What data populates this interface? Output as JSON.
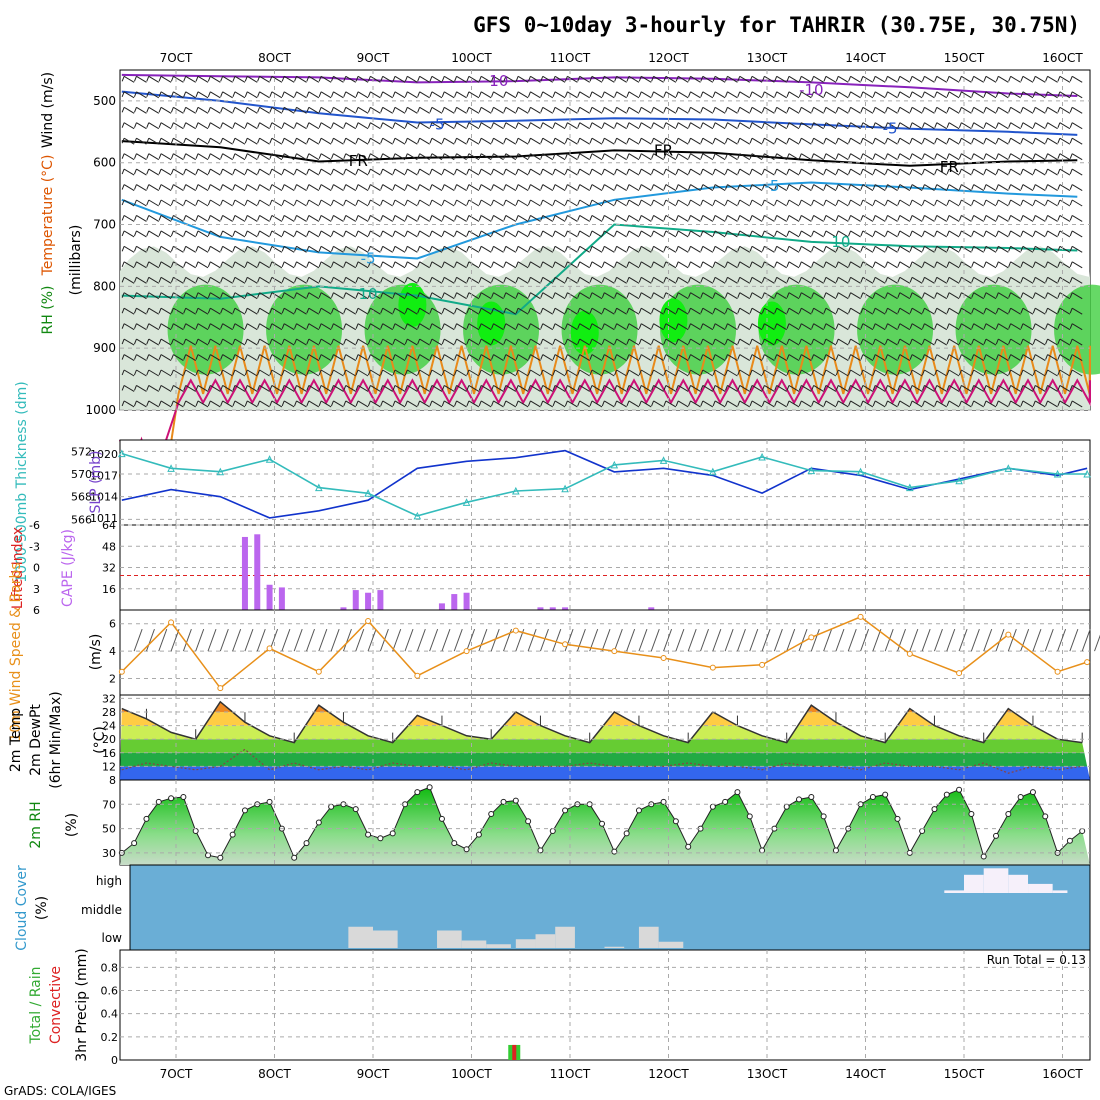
{
  "title": "GFS 0~10day 3-hourly for TAHRIR (30.75E, 30.75N)",
  "credit": "GrADS: COLA/IGES",
  "run_total_label": "Run Total = 0.13",
  "colors": {
    "rh_green": "#33cc33",
    "rh_light": "#d9e6d9",
    "slp": "#1133cc",
    "thickness": "#33bbbb",
    "cape": "#bb66ee",
    "lifted_index": "#dd2222",
    "wind_speed": "#e8901a",
    "cloud_bg": "#6aaed6",
    "cloud_fill": "#d9d9d9",
    "precip_total": "#33cc33",
    "precip_conv": "#dd2222"
  },
  "chart_data": [
    {
      "id": "upper_air",
      "type": "heatmap",
      "ylabel_parts": [
        "RH (%)",
        "Temperature (°C)",
        "Wind (m/s)"
      ],
      "ylabel_right": "(millibars)",
      "x_ticks": [
        "7OCT",
        "8OCT",
        "9OCT",
        "10OCT",
        "11OCT",
        "12OCT",
        "13OCT",
        "14OCT",
        "15OCT",
        "16OCT"
      ],
      "y_ticks": [
        500,
        600,
        700,
        800,
        900,
        1000
      ],
      "ylim": [
        450,
        1000
      ],
      "contour_labels": [
        {
          "text": "-10",
          "x": 3.8,
          "p": 468,
          "color": "#8822bb"
        },
        {
          "text": "-10",
          "x": 7.0,
          "p": 482,
          "color": "#8822bb"
        },
        {
          "text": "-5",
          "x": 3.2,
          "p": 538,
          "color": "#2255cc"
        },
        {
          "text": "-5",
          "x": 7.8,
          "p": 545,
          "color": "#2255cc"
        },
        {
          "text": "FR",
          "x": 2.4,
          "p": 597,
          "color": "#000000"
        },
        {
          "text": "FR",
          "x": 5.5,
          "p": 580,
          "color": "#000000"
        },
        {
          "text": "FR",
          "x": 8.4,
          "p": 607,
          "color": "#000000"
        },
        {
          "text": "-5",
          "x": 6.6,
          "p": 638,
          "color": "#2299dd"
        },
        {
          "text": "10",
          "x": 7.3,
          "p": 728,
          "color": "#11aa88"
        },
        {
          "text": "-5",
          "x": 2.5,
          "p": 755,
          "color": "#2299dd"
        },
        {
          "text": "10",
          "x": 2.5,
          "p": 812,
          "color": "#11aa88"
        }
      ],
      "isotherms": [
        {
          "name": "-10",
          "color": "#8822bb",
          "x": [
            0,
            1,
            2,
            3,
            4,
            5,
            6,
            7,
            8,
            9,
            9.7
          ],
          "p": [
            458,
            460,
            462,
            470,
            468,
            462,
            464,
            470,
            478,
            488,
            492
          ]
        },
        {
          "name": "-5",
          "color": "#2255cc",
          "x": [
            0,
            1,
            2,
            3,
            4,
            5,
            6,
            7,
            8,
            9,
            9.7
          ],
          "p": [
            485,
            500,
            520,
            535,
            532,
            528,
            530,
            538,
            545,
            550,
            555
          ]
        },
        {
          "name": "FR",
          "color": "#000000",
          "x": [
            0,
            1,
            2,
            3,
            4,
            5,
            6,
            7,
            8,
            9,
            9.7
          ],
          "p": [
            565,
            575,
            598,
            592,
            590,
            580,
            584,
            596,
            605,
            598,
            596
          ]
        },
        {
          "name": "-5b",
          "color": "#2299dd",
          "x": [
            0,
            1,
            2,
            3,
            4,
            5,
            6,
            7,
            8,
            9,
            9.7
          ],
          "p": [
            660,
            720,
            745,
            755,
            700,
            660,
            640,
            632,
            640,
            650,
            655
          ]
        },
        {
          "name": "10",
          "color": "#11aa88",
          "x": [
            0,
            1,
            2,
            3,
            4,
            5,
            6,
            7,
            8,
            9,
            9.7
          ],
          "p": [
            815,
            820,
            800,
            815,
            845,
            700,
            712,
            728,
            735,
            738,
            742
          ]
        }
      ]
    },
    {
      "id": "slp_thickness",
      "type": "line",
      "ylabel_left": "1000-500mb Thickness (dm)",
      "ylabel_right": "SLP (mb)",
      "y_ticks_left": [
        566,
        568,
        570,
        572
      ],
      "y_ticks_right": [
        1011,
        1014,
        1017,
        1020
      ],
      "ylim_left": [
        565.5,
        573
      ],
      "ylim_right": [
        1010,
        1022
      ],
      "series": [
        {
          "name": "SLP",
          "color": "#1133cc",
          "axis": "right",
          "x": [
            0,
            0.5,
            1,
            1.5,
            2,
            2.5,
            3,
            3.5,
            4,
            4.5,
            5,
            5.5,
            6,
            6.5,
            7,
            7.5,
            8,
            8.5,
            9,
            9.5,
            9.8
          ],
          "values": [
            1013.5,
            1015,
            1014,
            1011,
            1012,
            1013.5,
            1018,
            1019,
            1019.5,
            1020.5,
            1017.5,
            1018,
            1017,
            1014.5,
            1018,
            1017,
            1015,
            1016.5,
            1018,
            1017,
            1018
          ]
        },
        {
          "name": "Thickness",
          "color": "#33bbbb",
          "axis": "left",
          "x": [
            0,
            0.5,
            1,
            1.5,
            2,
            2.5,
            3,
            3.5,
            4,
            4.5,
            5,
            5.5,
            6,
            6.5,
            7,
            7.5,
            8,
            8.5,
            9,
            9.5,
            9.8
          ],
          "values": [
            571.8,
            570.5,
            570.2,
            571.3,
            568.8,
            568.3,
            566.3,
            567.5,
            568.5,
            568.7,
            570.8,
            571.2,
            570.2,
            571.5,
            570.3,
            570.2,
            568.8,
            569.4,
            570.5,
            570,
            570
          ]
        }
      ]
    },
    {
      "id": "cape_li",
      "type": "bar",
      "ylabel_left": "Lifted Index",
      "ylabel_right": "CAPE (J/kg)",
      "y_ticks_left": [
        -6,
        -3,
        0,
        3,
        6
      ],
      "y_ticks_right": [
        16,
        32,
        48,
        64
      ],
      "ylim_right": [
        0,
        64
      ],
      "x": [
        1.25,
        1.375,
        1.5,
        1.625,
        2.25,
        2.375,
        2.5,
        2.625,
        3.25,
        3.375,
        3.5,
        4.25,
        4.375,
        4.5,
        5.375
      ],
      "values": [
        55,
        57,
        19,
        17,
        2,
        15,
        13,
        15,
        5,
        12,
        13,
        2,
        2,
        2,
        2
      ]
    },
    {
      "id": "wind10m",
      "type": "line",
      "ylabel": "10m Wind Speed & Barbs",
      "yunit": "(m/s)",
      "y_ticks": [
        2,
        4,
        6
      ],
      "ylim": [
        0.8,
        7
      ],
      "x": [
        0,
        0.5,
        1,
        1.5,
        2,
        2.5,
        3,
        3.5,
        4,
        4.5,
        5,
        5.5,
        6,
        6.5,
        7,
        7.5,
        8,
        8.5,
        9,
        9.5,
        9.8
      ],
      "values": [
        2.5,
        6.1,
        1.3,
        4.2,
        2.5,
        6.2,
        2.2,
        4,
        5.5,
        4.5,
        4,
        3.5,
        2.8,
        3,
        5,
        6.5,
        3.8,
        2.4,
        5.2,
        2.5,
        3.2
      ]
    },
    {
      "id": "temp2m",
      "type": "area",
      "ylabel_parts": [
        "2m Temp",
        "2m DewPt",
        "(6hr Min/Max)"
      ],
      "yunit": "(°C)",
      "y_ticks": [
        8,
        12,
        16,
        20,
        24,
        28,
        32
      ],
      "ylim": [
        8,
        33
      ],
      "x": [
        0,
        0.25,
        0.5,
        0.75,
        1,
        1.25,
        1.5,
        1.75,
        2,
        2.25,
        2.5,
        2.75,
        3,
        3.25,
        3.5,
        3.75,
        4,
        4.25,
        4.5,
        4.75,
        5,
        5.25,
        5.5,
        5.75,
        6,
        6.25,
        6.5,
        6.75,
        7,
        7.25,
        7.5,
        7.75,
        8,
        8.25,
        8.5,
        8.75,
        9,
        9.25,
        9.5,
        9.75
      ],
      "temp": [
        29,
        26,
        22,
        20,
        31,
        25,
        21,
        19,
        30,
        25,
        21,
        19,
        27,
        24,
        21,
        20,
        28,
        24,
        21,
        19,
        28,
        24,
        21,
        19,
        28,
        24,
        21,
        19,
        30,
        25,
        21,
        19,
        29,
        24,
        21,
        19,
        29,
        24,
        20,
        19
      ],
      "dewpt": [
        11,
        13,
        12,
        11,
        12,
        17,
        11,
        13,
        11,
        12,
        11,
        13,
        12,
        12,
        11,
        13,
        12,
        12,
        12,
        13,
        12,
        12,
        12,
        13,
        12,
        12,
        11,
        13,
        12,
        12,
        11,
        13,
        12,
        12,
        11,
        13,
        10,
        12,
        11,
        12
      ]
    },
    {
      "id": "rh2m",
      "type": "area",
      "ylabel": "2m RH",
      "yunit": "(%)",
      "y_ticks": [
        30,
        50,
        70
      ],
      "ylim": [
        20,
        90
      ],
      "x": [
        0,
        0.125,
        0.25,
        0.375,
        0.5,
        0.625,
        0.75,
        0.875,
        1,
        1.125,
        1.25,
        1.375,
        1.5,
        1.625,
        1.75,
        1.875,
        2,
        2.125,
        2.25,
        2.375,
        2.5,
        2.625,
        2.75,
        2.875,
        3,
        3.125,
        3.25,
        3.375,
        3.5,
        3.625,
        3.75,
        3.875,
        4,
        4.125,
        4.25,
        4.375,
        4.5,
        4.625,
        4.75,
        4.875,
        5,
        5.125,
        5.25,
        5.375,
        5.5,
        5.625,
        5.75,
        5.875,
        6,
        6.125,
        6.25,
        6.375,
        6.5,
        6.625,
        6.75,
        6.875,
        7,
        7.125,
        7.25,
        7.375,
        7.5,
        7.625,
        7.75,
        7.875,
        8,
        8.125,
        8.25,
        8.375,
        8.5,
        8.625,
        8.75,
        8.875,
        9,
        9.125,
        9.25,
        9.375,
        9.5,
        9.625,
        9.75
      ],
      "values": [
        30,
        38,
        58,
        72,
        75,
        76,
        48,
        28,
        26,
        45,
        65,
        70,
        72,
        50,
        26,
        38,
        55,
        68,
        70,
        66,
        45,
        42,
        46,
        70,
        80,
        84,
        58,
        38,
        33,
        45,
        62,
        72,
        73,
        56,
        32,
        48,
        65,
        70,
        70,
        54,
        31,
        46,
        65,
        70,
        72,
        56,
        35,
        50,
        68,
        72,
        80,
        60,
        32,
        50,
        68,
        74,
        76,
        60,
        32,
        50,
        70,
        76,
        78,
        58,
        30,
        48,
        66,
        78,
        82,
        62,
        27,
        44,
        62,
        76,
        80,
        60,
        30,
        40,
        48
      ]
    },
    {
      "id": "cloud",
      "type": "bar",
      "ylabel": "Cloud Cover",
      "yunit": "(%)",
      "y_ticks": [
        "high",
        "middle",
        "low"
      ],
      "blocks": [
        {
          "layer": "low",
          "x0": 2.3,
          "x1": 2.55,
          "value": 0.85
        },
        {
          "layer": "low",
          "x0": 2.55,
          "x1": 2.8,
          "value": 0.7
        },
        {
          "layer": "low",
          "x0": 3.2,
          "x1": 3.45,
          "value": 0.7
        },
        {
          "layer": "low",
          "x0": 3.45,
          "x1": 3.7,
          "value": 0.3
        },
        {
          "layer": "low",
          "x0": 3.7,
          "x1": 3.95,
          "value": 0.15
        },
        {
          "layer": "low",
          "x0": 4.0,
          "x1": 4.2,
          "value": 0.35
        },
        {
          "layer": "low",
          "x0": 4.2,
          "x1": 4.4,
          "value": 0.55
        },
        {
          "layer": "low",
          "x0": 4.4,
          "x1": 4.6,
          "value": 0.85
        },
        {
          "layer": "low",
          "x0": 4.9,
          "x1": 5.1,
          "value": 0.05
        },
        {
          "layer": "low",
          "x0": 5.25,
          "x1": 5.45,
          "value": 0.85
        },
        {
          "layer": "low",
          "x0": 5.45,
          "x1": 5.7,
          "value": 0.25
        },
        {
          "layer": "high",
          "x0": 8.35,
          "x1": 8.55,
          "value": 0.1
        },
        {
          "layer": "high",
          "x0": 8.55,
          "x1": 8.75,
          "value": 0.7
        },
        {
          "layer": "high",
          "x0": 8.75,
          "x1": 9.0,
          "value": 0.95
        },
        {
          "layer": "high",
          "x0": 9.0,
          "x1": 9.2,
          "value": 0.7
        },
        {
          "layer": "high",
          "x0": 9.2,
          "x1": 9.45,
          "value": 0.35
        },
        {
          "layer": "high",
          "x0": 9.45,
          "x1": 9.6,
          "value": 0.1
        }
      ]
    },
    {
      "id": "precip",
      "type": "bar",
      "ylabel_parts": [
        "3hr Precip (mm)",
        "Total / Rain",
        "Convective"
      ],
      "y_ticks": [
        0,
        0.2,
        0.4,
        0.6,
        0.8
      ],
      "ylim": [
        0,
        0.95
      ],
      "x_ticks": [
        "7OCT",
        "8OCT",
        "9OCT",
        "10OCT",
        "11OCT",
        "12OCT",
        "13OCT",
        "14OCT",
        "15OCT",
        "16OCT"
      ],
      "bars": [
        {
          "x": 3.375,
          "total": 0.13,
          "conv": 0.13
        }
      ]
    }
  ]
}
